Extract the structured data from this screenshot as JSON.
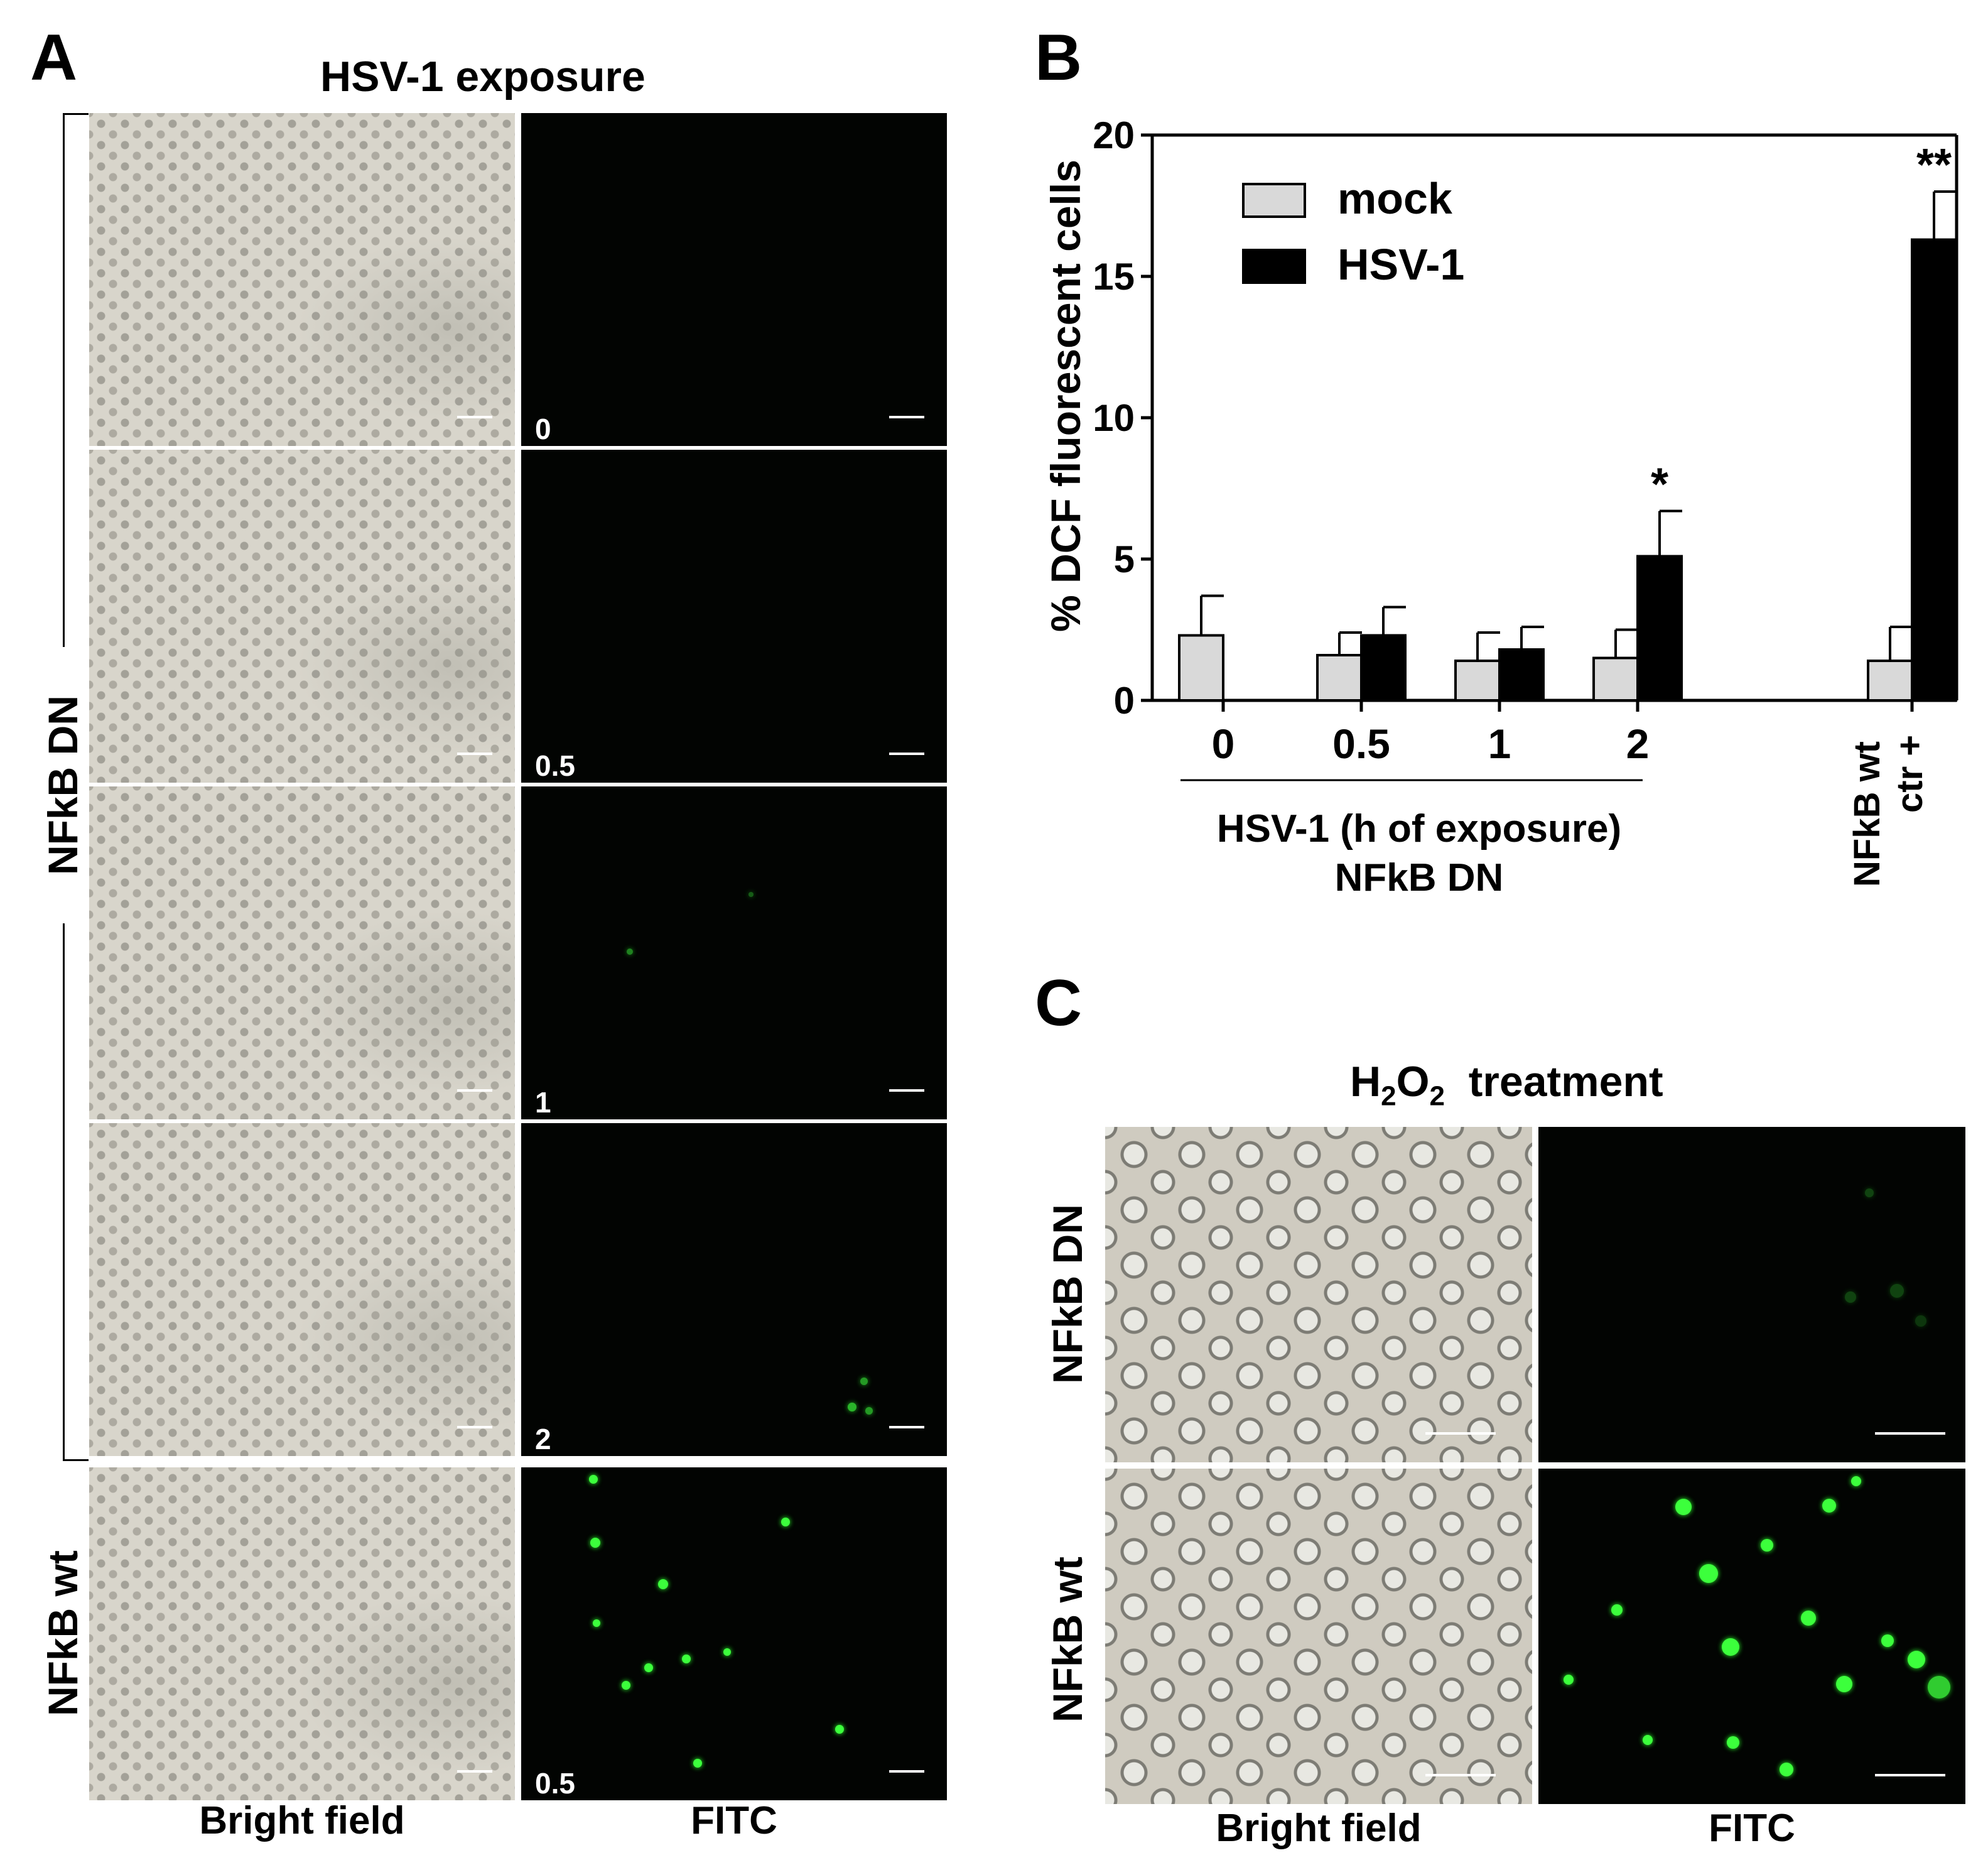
{
  "panel_a": {
    "letter": "A",
    "title": "HSV-1 exposure",
    "group_dn_label": "NFkB DN",
    "group_wt_label": "NFkB wt",
    "col_labels": [
      "Bright field",
      "FITC"
    ],
    "row_labels": [
      "0",
      "0.5",
      "1",
      "2",
      "0.5"
    ]
  },
  "panel_b": {
    "letter": "B",
    "ylabel": "% DCF fluorescent cells",
    "xlabel_line1": "HSV-1 (h of exposure)",
    "xlabel_line2": "NFkB DN",
    "ctr_label_line1": "NFkB wt",
    "ctr_label_line2": "ctr +",
    "legend": [
      "mock",
      "HSV-1"
    ],
    "colors": {
      "mock": "#d9d9d9",
      "hsv1": "#000000"
    }
  },
  "panel_c": {
    "letter": "C",
    "title_main": "H",
    "title_sub1": "2",
    "title_mid": "O",
    "title_sub2": "2",
    "title_rest": "treatment",
    "row_labels": [
      "NFkB DN",
      "NFkB wt"
    ],
    "col_labels": [
      "Bright field",
      "FITC"
    ]
  },
  "chart_data": {
    "type": "bar",
    "categories": [
      "0",
      "0.5",
      "1",
      "2",
      "NFkB wt ctr +"
    ],
    "ylabel": "% DCF fluorescent cells",
    "xlabel": "HSV-1 (h of exposure) NFkB DN",
    "ylim": [
      0,
      20
    ],
    "yticks": [
      0,
      5,
      10,
      15,
      20
    ],
    "series": [
      {
        "name": "mock",
        "values": [
          2.3,
          1.6,
          1.4,
          1.5,
          1.4
        ],
        "errors": [
          1.4,
          0.8,
          1.0,
          1.0,
          1.2
        ]
      },
      {
        "name": "HSV-1",
        "values": [
          null,
          2.3,
          1.8,
          5.1,
          16.3
        ],
        "errors": [
          null,
          1.0,
          0.8,
          1.6,
          1.7
        ]
      }
    ],
    "annotations": [
      {
        "category": "2",
        "series": "HSV-1",
        "text": "*"
      },
      {
        "category": "NFkB wt ctr +",
        "series": "HSV-1",
        "text": "**"
      }
    ],
    "legend_position": "top-left",
    "grid": false
  }
}
